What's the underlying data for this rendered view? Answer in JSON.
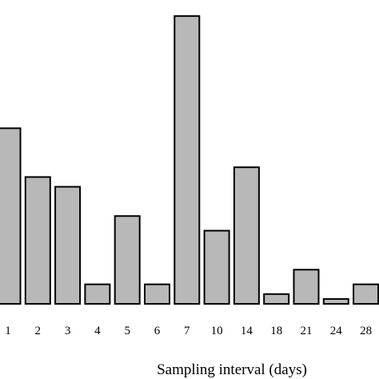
{
  "chart_data": {
    "type": "bar",
    "categories": [
      "1",
      "2",
      "3",
      "4",
      "5",
      "6",
      "7",
      "10",
      "14",
      "18",
      "21",
      "24",
      "28"
    ],
    "values": [
      18,
      13,
      12,
      2,
      9,
      2,
      29.5,
      7.5,
      14,
      1,
      3.5,
      0.5,
      2
    ],
    "xlabel": "Sampling interval (days)",
    "ylim": [
      0,
      30
    ],
    "grid": false,
    "bar_color": "#b8b8b8",
    "edge_color": "#000000"
  }
}
